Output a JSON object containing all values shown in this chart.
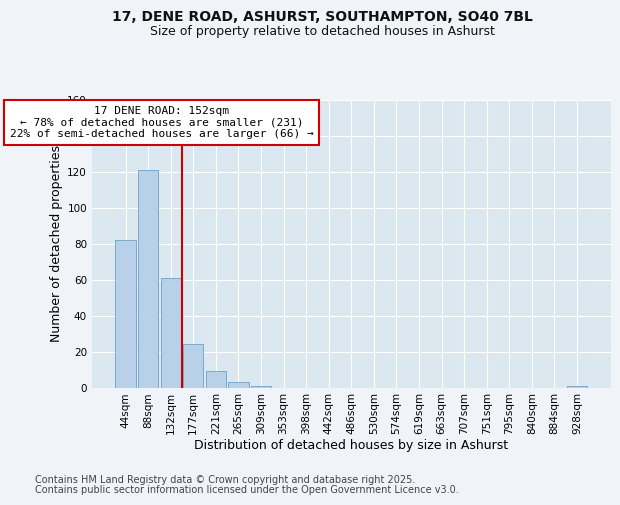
{
  "title_line1": "17, DENE ROAD, ASHURST, SOUTHAMPTON, SO40 7BL",
  "title_line2": "Size of property relative to detached houses in Ashurst",
  "xlabel": "Distribution of detached houses by size in Ashurst",
  "ylabel": "Number of detached properties",
  "footer_line1": "Contains HM Land Registry data © Crown copyright and database right 2025.",
  "footer_line2": "Contains public sector information licensed under the Open Government Licence v3.0.",
  "annotation_title": "17 DENE ROAD: 152sqm",
  "annotation_line1": "← 78% of detached houses are smaller (231)",
  "annotation_line2": "22% of semi-detached houses are larger (66) →",
  "bar_categories": [
    "44sqm",
    "88sqm",
    "132sqm",
    "177sqm",
    "221sqm",
    "265sqm",
    "309sqm",
    "353sqm",
    "398sqm",
    "442sqm",
    "486sqm",
    "530sqm",
    "574sqm",
    "619sqm",
    "663sqm",
    "707sqm",
    "751sqm",
    "795sqm",
    "840sqm",
    "884sqm",
    "928sqm"
  ],
  "bar_values": [
    82,
    121,
    61,
    24,
    9,
    3,
    1,
    0,
    0,
    0,
    0,
    0,
    0,
    0,
    0,
    0,
    0,
    0,
    0,
    0,
    1
  ],
  "bar_color": "#b8d0e8",
  "bar_edge_color": "#7aaad0",
  "vline_color": "#cc0000",
  "vline_x": 2.5,
  "annotation_box_color": "#cc0000",
  "ylim": [
    0,
    160
  ],
  "yticks": [
    0,
    20,
    40,
    60,
    80,
    100,
    120,
    140,
    160
  ],
  "bg_color": "#f0f4f8",
  "plot_bg_color": "#dce8f0",
  "grid_color": "#ffffff",
  "title_fontsize": 10,
  "subtitle_fontsize": 9,
  "axis_label_fontsize": 9,
  "tick_fontsize": 7.5,
  "footer_fontsize": 7,
  "annotation_fontsize": 8
}
